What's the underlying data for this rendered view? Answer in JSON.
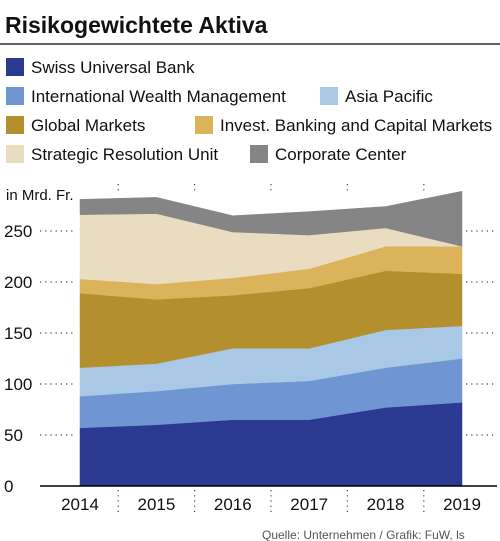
{
  "chart_data": {
    "type": "area",
    "stacked": true,
    "title": "Risikogewichtete Aktiva",
    "ylabel": "in Mrd. Fr.",
    "xlabel": "",
    "x": [
      "2014",
      "2015",
      "2016",
      "2017",
      "2018",
      "2019"
    ],
    "y_ticks": [
      0,
      50,
      100,
      150,
      200,
      250
    ],
    "ylim": [
      0,
      300
    ],
    "source": "Quelle: Unternehmen / Grafik: FuW, ls",
    "legend_position": "top",
    "series": [
      {
        "name": "Swiss Universal Bank",
        "color": "#2b3990",
        "values": [
          57,
          60,
          65,
          65,
          77,
          82
        ]
      },
      {
        "name": "International Wealth Management",
        "color": "#6f95d2",
        "values": [
          31,
          33,
          35,
          38,
          39,
          43
        ]
      },
      {
        "name": "Asia Pacific",
        "color": "#a8c8e6",
        "values": [
          28,
          27,
          35,
          32,
          37,
          32
        ]
      },
      {
        "name": "Global Markets",
        "color": "#b38f2e",
        "values": [
          73,
          63,
          52,
          59,
          58,
          51
        ]
      },
      {
        "name": "Invest. Banking and Capital Markets",
        "color": "#dbb35a",
        "values": [
          14,
          15,
          17,
          19,
          24,
          27
        ]
      },
      {
        "name": "Strategic Resolution Unit",
        "color": "#e9dcc1",
        "values": [
          63,
          69,
          45,
          33,
          18,
          0
        ]
      },
      {
        "name": "Corporate Center",
        "color": "#858585",
        "values": [
          15,
          16,
          16,
          23,
          21,
          54
        ]
      }
    ]
  }
}
